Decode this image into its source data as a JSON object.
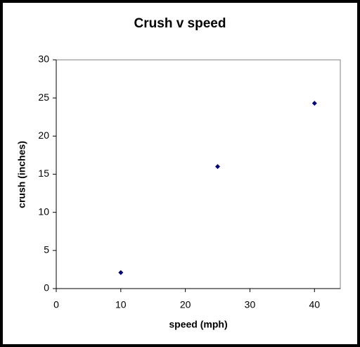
{
  "chart_data": {
    "type": "scatter",
    "title": "Crush v speed",
    "x_label": "speed (mph)",
    "y_label": "crush (inches)",
    "x": [
      10,
      25,
      40
    ],
    "values": [
      2.1,
      16.0,
      24.3
    ],
    "color": "#000080",
    "xlim": [
      0,
      44
    ],
    "xticks": [
      0,
      10,
      20,
      30,
      40
    ],
    "ylim": [
      0,
      30
    ],
    "yticks": [
      0,
      5,
      10,
      15,
      20,
      25,
      30
    ],
    "grid": false
  }
}
